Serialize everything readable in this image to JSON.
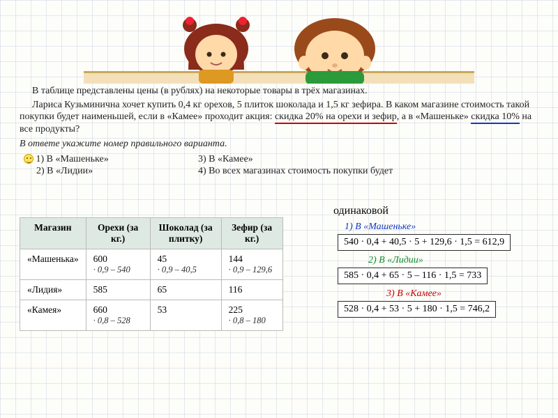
{
  "problem": {
    "line1": "В таблице представлены цены (в рублях) на некоторые товары в трёх магазинах.",
    "line2_a": "Лариса Кузьминична хочет купить 0,4 кг орехов, 5 плиток шоколада и 1,5 кг зефира. В каком магазине стоимость такой покупки будет наименьшей, если в «Камее» проходит акция: ",
    "promo_kameya": "скидка 20% на орехи и зефир",
    "line2_mid": ", а в «Машеньке» ",
    "promo_mash": "скидка 10%",
    "line2_end": " на все продукты?",
    "instr": "В ответе укажите номер правильного варианта."
  },
  "options": {
    "o1": "1) В «Машеньке»",
    "o2": "2) В «Лидии»",
    "o3": "3) В «Камее»",
    "o4": "4) Во всех магазинах стоимость покупки будет",
    "o4b": "одинаковой"
  },
  "table": {
    "h1": "Магазин",
    "h2": "Орехи (за кг.)",
    "h3": "Шоколад (за плитку)",
    "h4": "Зефир (за кг.)",
    "rows": [
      {
        "shop": "«Машенька»",
        "nuts": "600",
        "nuts_c": "· 0,9 – 540",
        "choc": "45",
        "choc_c": "· 0,9 – 40,5",
        "zef": "144",
        "zef_c": "· 0,9 – 129,6"
      },
      {
        "shop": "«Лидия»",
        "nuts": "585",
        "nuts_c": "",
        "choc": "65",
        "choc_c": "",
        "zef": "116",
        "zef_c": ""
      },
      {
        "shop": "«Камея»",
        "nuts": " 660",
        "nuts_c": "· 0,8 – 528",
        "choc": "53",
        "choc_c": "",
        "zef": "225",
        "zef_c": "· 0,8 – 180"
      }
    ]
  },
  "answers": {
    "a1_label": "1) В «Машеньке»",
    "a1_expr": "540 · 0,4 + 40,5 · 5 + 129,6 · 1,5 = 612,9",
    "a2_label": "2) В «Лидии»",
    "a2_expr": "585 · 0,4 + 65 · 5 – 116 · 1,5 = 733",
    "a3_label": "3) В «Камее»",
    "a3_expr": "528 · 0,4 + 53 · 5 + 180 · 1,5 = 746,2"
  },
  "colors": {
    "red": "#c00000",
    "blue": "#1038c0",
    "green": "#118a2a",
    "table_header_bg": "#dfe9e3",
    "grid": "rgba(150,170,200,0.25)"
  }
}
